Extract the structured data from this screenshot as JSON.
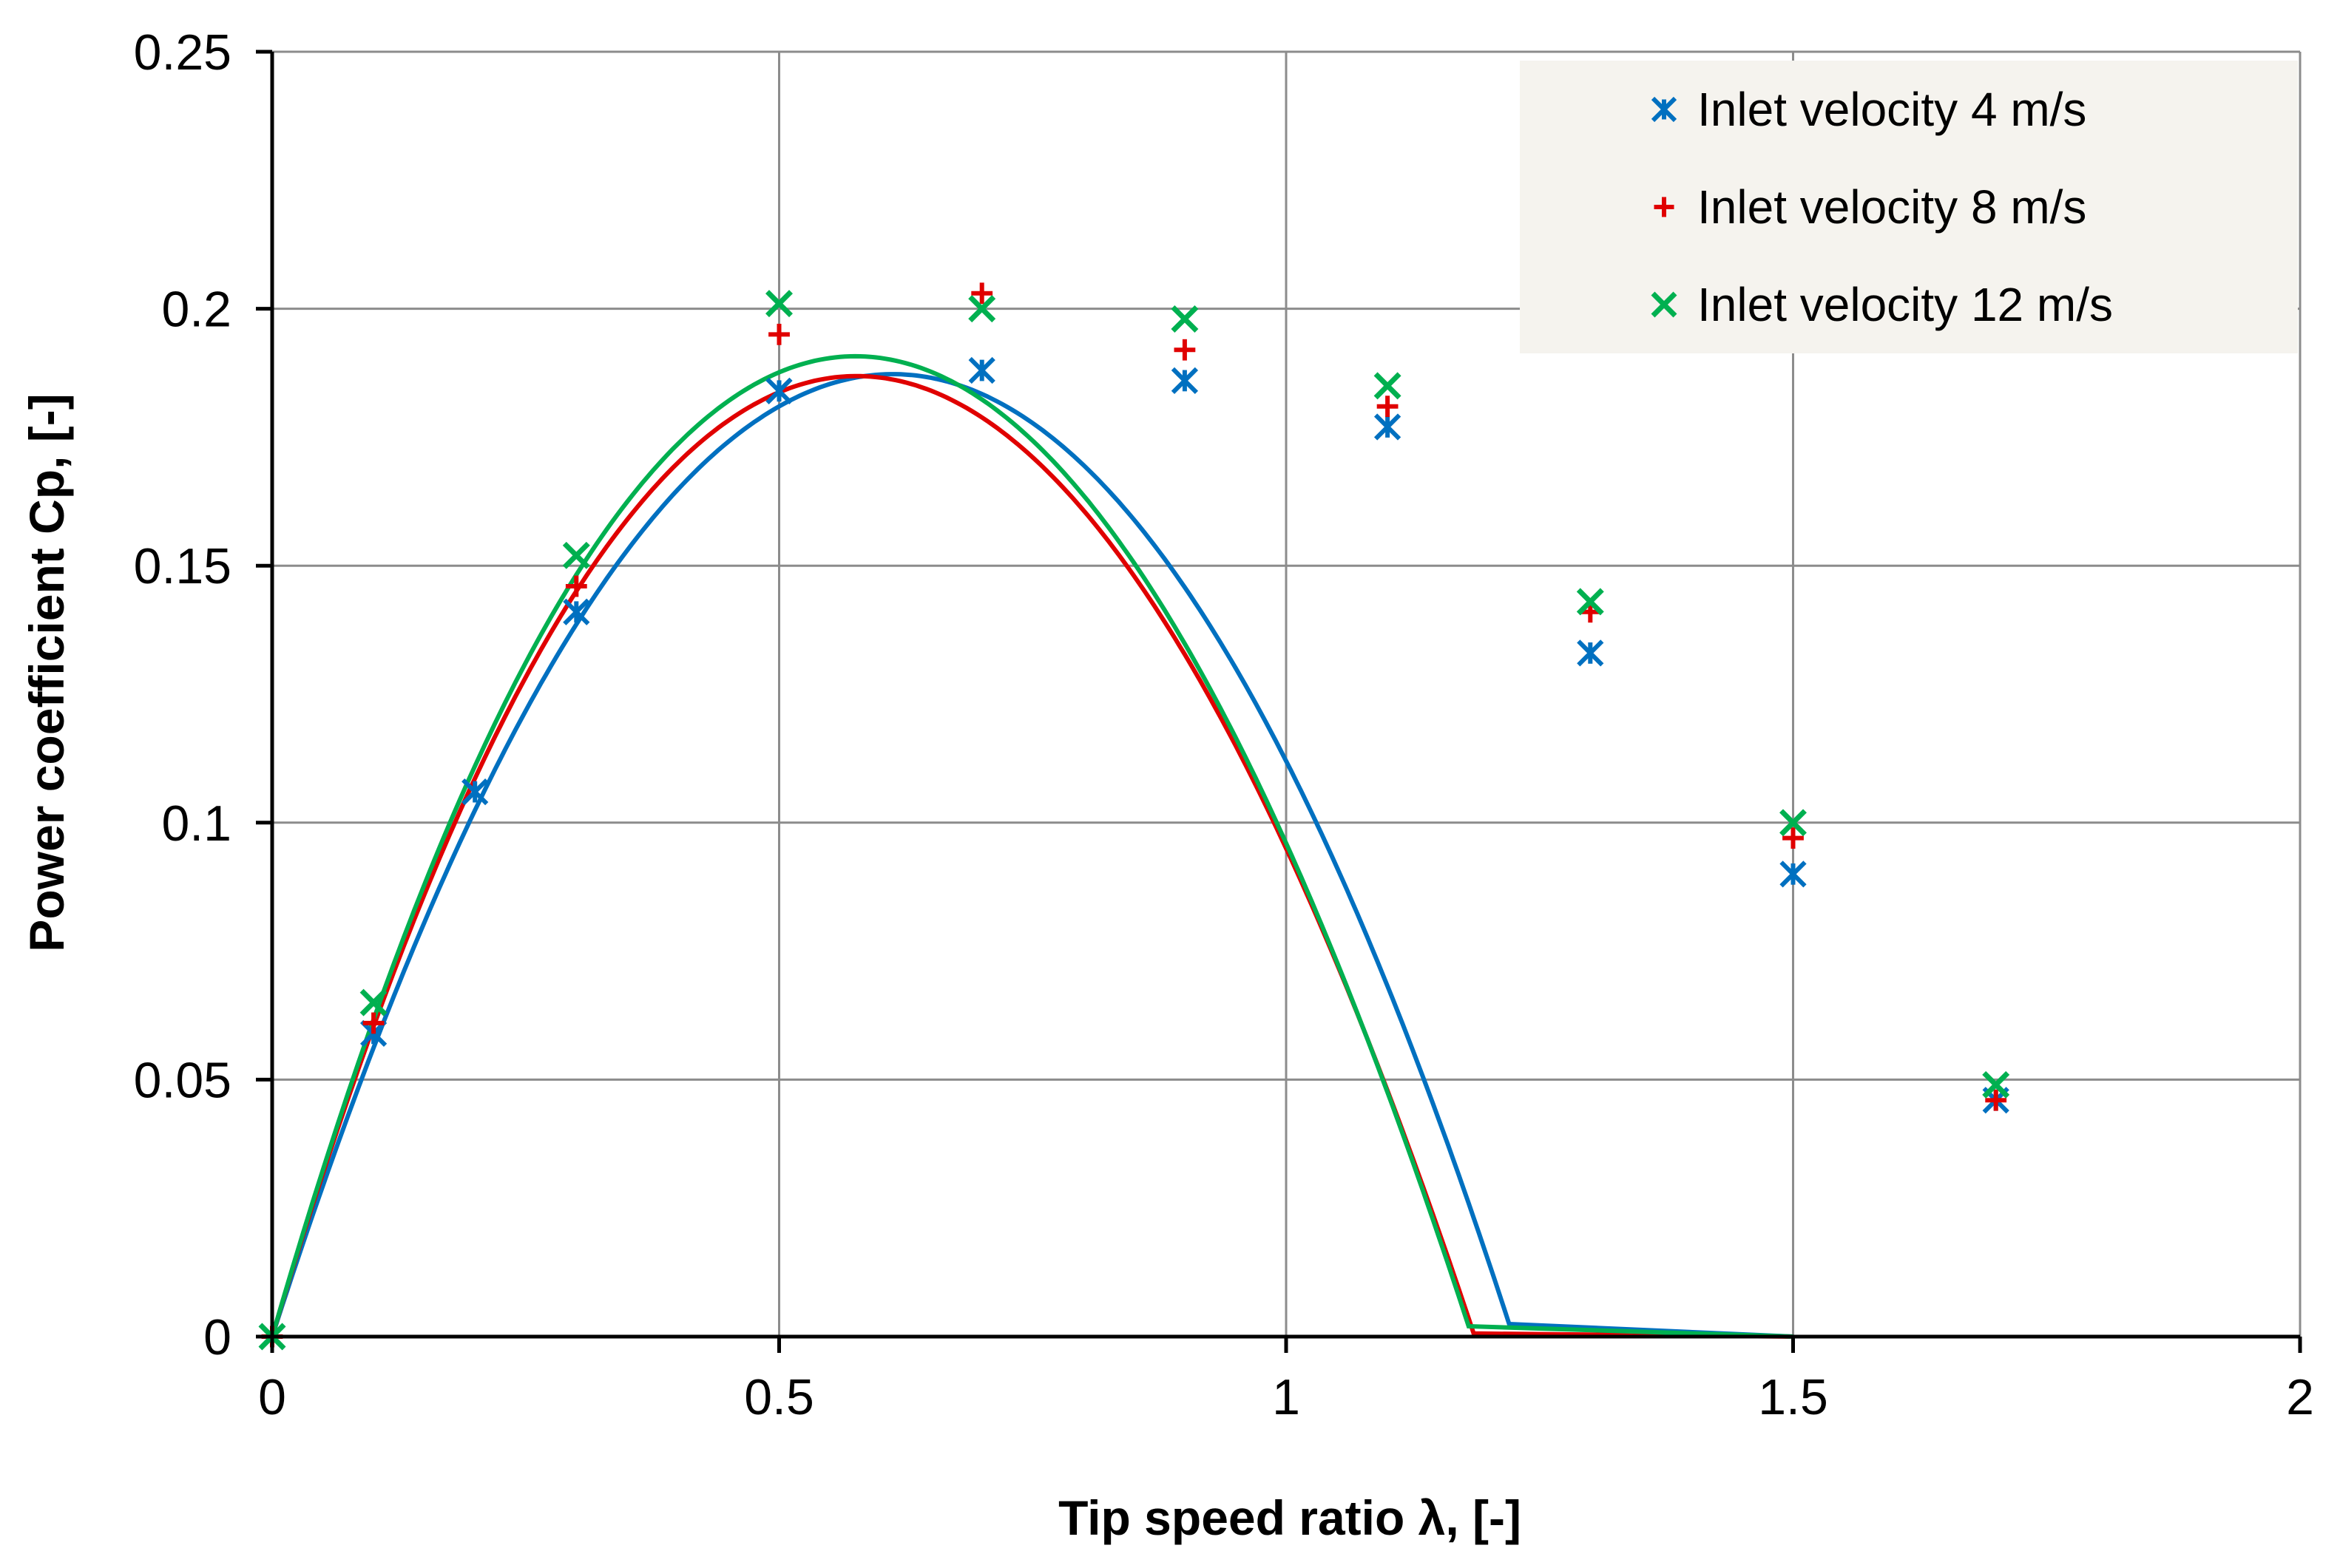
{
  "chart_data": {
    "type": "scatter",
    "title": "",
    "xlabel": "Tip speed ratio λ, [-]",
    "ylabel": "Power coefficient Cp, [-]",
    "xlim": [
      0,
      2
    ],
    "ylim": [
      0,
      0.25
    ],
    "x_ticks": [
      0,
      0.5,
      1,
      1.5,
      2
    ],
    "x_tick_labels": [
      "0",
      "0.5",
      "1",
      "1.5",
      "2"
    ],
    "y_ticks": [
      0,
      0.05,
      0.1,
      0.15,
      0.2,
      0.25
    ],
    "y_tick_labels": [
      "0",
      "0.05",
      "0.1",
      "0.15",
      "0.2",
      "0.25"
    ],
    "grid": true,
    "legend_position": "top-right",
    "series": [
      {
        "name": "Inlet velocity 4 m/s",
        "color": "#0070C0",
        "marker": "asterisk",
        "points": [
          [
            0,
            0
          ],
          [
            0.1,
            0.059
          ],
          [
            0.2,
            0.106
          ],
          [
            0.3,
            0.141
          ],
          [
            0.5,
            0.184
          ],
          [
            0.7,
            0.188
          ],
          [
            0.9,
            0.186
          ],
          [
            1.1,
            0.177
          ],
          [
            1.3,
            0.133
          ],
          [
            1.5,
            0.09
          ],
          [
            1.7,
            0.046
          ]
        ],
        "trend_cubic": [
          0,
          0.612,
          -0.5,
          0.0
        ]
      },
      {
        "name": "Inlet velocity 8 m/s",
        "color": "#E00000",
        "marker": "plus",
        "points": [
          [
            0,
            0
          ],
          [
            0.1,
            0.061
          ],
          [
            0.3,
            0.146
          ],
          [
            0.5,
            0.195
          ],
          [
            0.7,
            0.203
          ],
          [
            0.9,
            0.192
          ],
          [
            1.1,
            0.181
          ],
          [
            1.3,
            0.141
          ],
          [
            1.5,
            0.097
          ],
          [
            1.7,
            0.046
          ]
        ],
        "trend_cubic": [
          0,
          0.665,
          -0.62,
          0.05
        ]
      },
      {
        "name": "Inlet velocity 12 m/s",
        "color": "#00B050",
        "marker": "cross",
        "points": [
          [
            0,
            0
          ],
          [
            0.1,
            0.065
          ],
          [
            0.3,
            0.152
          ],
          [
            0.5,
            0.201
          ],
          [
            0.7,
            0.2
          ],
          [
            0.9,
            0.198
          ],
          [
            1.1,
            0.185
          ],
          [
            1.3,
            0.143
          ],
          [
            1.5,
            0.1
          ],
          [
            1.7,
            0.049
          ]
        ],
        "trend_cubic": [
          0,
          0.68,
          -0.635,
          0.051
        ]
      }
    ]
  }
}
